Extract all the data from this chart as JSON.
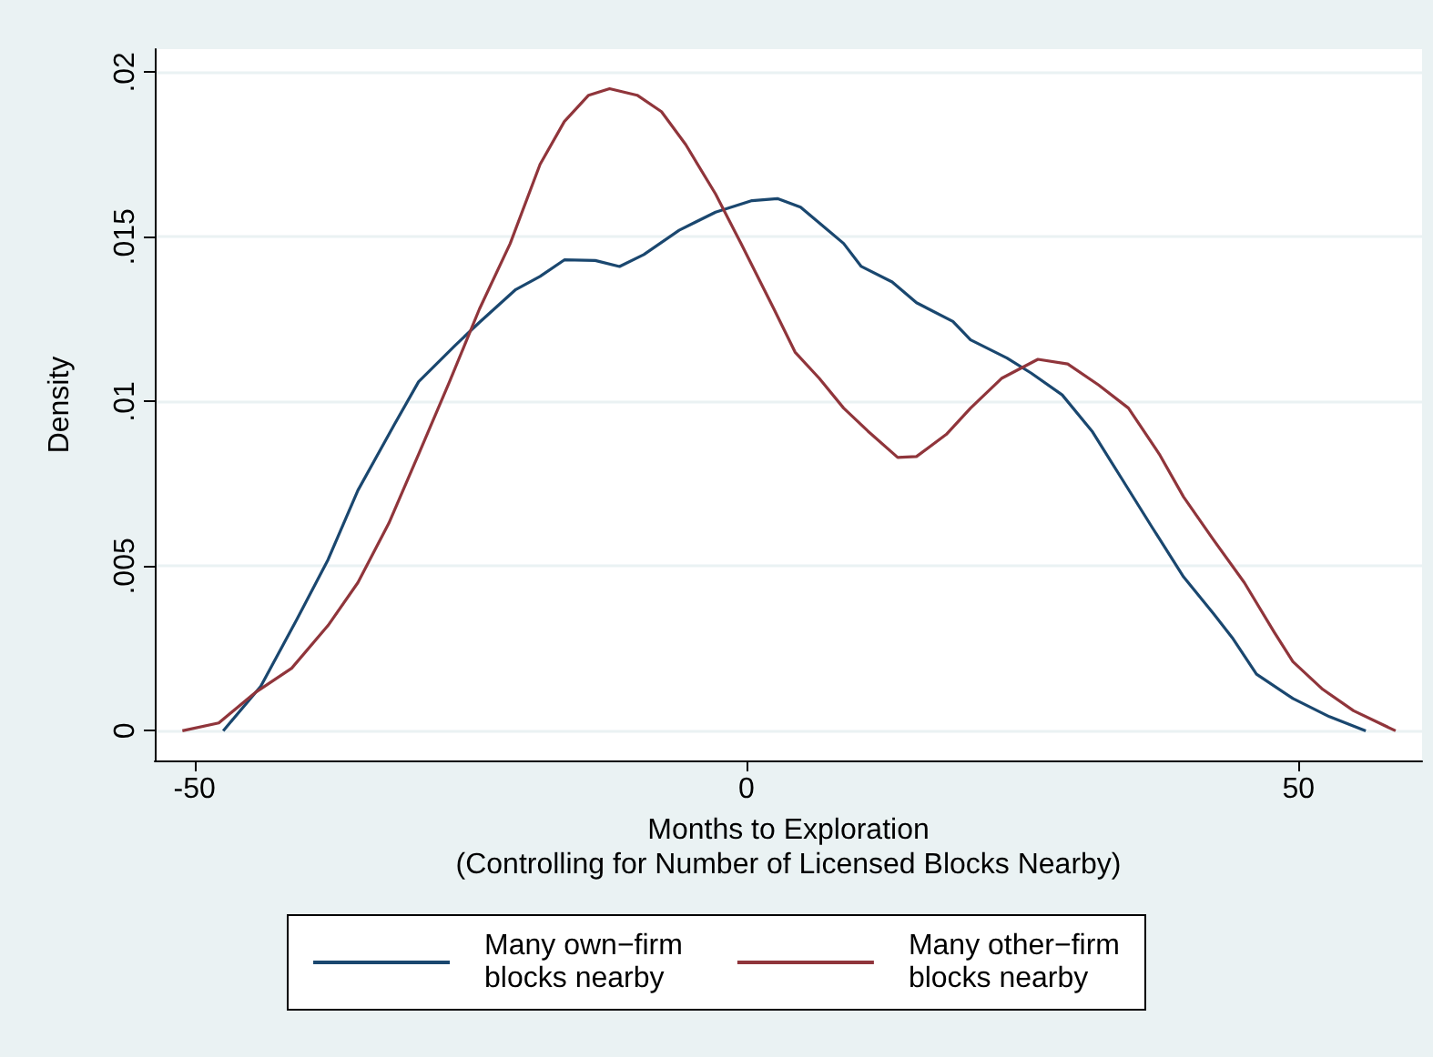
{
  "chart_data": {
    "type": "line",
    "xlabel": "Months to Exploration\n(Controlling for Number of Licensed Blocks Nearby)",
    "ylabel": "Density",
    "xlim": [
      -53.6,
      61.2
    ],
    "xticks": [
      -50,
      0,
      50
    ],
    "ylim": [
      -0.0009,
      0.0207
    ],
    "yticks": [
      0,
      {
        "value": 0.005,
        "label": ".005"
      },
      {
        "value": 0.01,
        "label": ".01"
      },
      {
        "value": 0.015,
        "label": ".015"
      },
      {
        "value": 0.02,
        "label": ".02"
      }
    ],
    "grid": "y",
    "legend": "bottom",
    "line_style": "solid",
    "marker": "none",
    "series": [
      {
        "name": "Many own−firm\nblocks nearby",
        "color": "#1a476f",
        "x": [
          -47.4,
          -44,
          -40.7,
          -37.9,
          -35.2,
          -31.9,
          -29.7,
          -26.4,
          -24.2,
          -20.9,
          -18.7,
          -16.5,
          -13.7,
          -11.5,
          -9.3,
          -6.1,
          -2.8,
          0.5,
          2.8,
          4.9,
          8.8,
          10.4,
          13.2,
          15.4,
          18.7,
          20.3,
          23.6,
          25.8,
          28.6,
          31.3,
          34.1,
          36.8,
          39.6,
          42.3,
          44.0,
          46.2,
          49.5,
          52.8,
          56.1
        ],
        "values": [
          0,
          0.00135,
          0.0034,
          0.0052,
          0.0073,
          0.0093,
          0.0106,
          0.0117,
          0.0124,
          0.0134,
          0.0138,
          0.0143,
          0.01428,
          0.0141,
          0.01446,
          0.0152,
          0.01575,
          0.0161,
          0.01616,
          0.0159,
          0.0148,
          0.0141,
          0.01363,
          0.013,
          0.01243,
          0.01187,
          0.01132,
          0.01086,
          0.0102,
          0.0091,
          0.0076,
          0.00615,
          0.00467,
          0.00356,
          0.00283,
          0.00172,
          0.00098,
          0.00043,
          0
        ]
      },
      {
        "name": "Many other−firm\nblocks nearby",
        "color": "#90353b",
        "x": [
          -51.1,
          -47.8,
          -44.5,
          -41.2,
          -37.9,
          -35.2,
          -32.4,
          -29.7,
          -26.9,
          -24.2,
          -21.4,
          -18.7,
          -16.5,
          -14.3,
          -12.4,
          -9.9,
          -7.7,
          -5.5,
          -2.8,
          -0.5,
          1.6,
          2.5,
          4.4,
          6.6,
          8.8,
          11.0,
          13.7,
          15.4,
          18.1,
          20.3,
          23.1,
          26.4,
          29.1,
          31.9,
          34.6,
          37.4,
          39.6,
          42.3,
          45.1,
          47.8,
          49.5,
          52.2,
          55.0,
          58.8
        ],
        "values": [
          0,
          0.00024,
          0.00116,
          0.0019,
          0.0032,
          0.0045,
          0.0063,
          0.0084,
          0.0106,
          0.0128,
          0.0148,
          0.0172,
          0.0185,
          0.0193,
          0.0195,
          0.0193,
          0.0188,
          0.0178,
          0.0163,
          0.0148,
          0.0134,
          0.0128,
          0.0115,
          0.0107,
          0.0098,
          0.0091,
          0.0083,
          0.00833,
          0.009,
          0.0098,
          0.0107,
          0.01128,
          0.01114,
          0.0105,
          0.0098,
          0.0084,
          0.0071,
          0.0058,
          0.0045,
          0.003,
          0.0021,
          0.00126,
          0.00061,
          0
        ]
      }
    ]
  }
}
